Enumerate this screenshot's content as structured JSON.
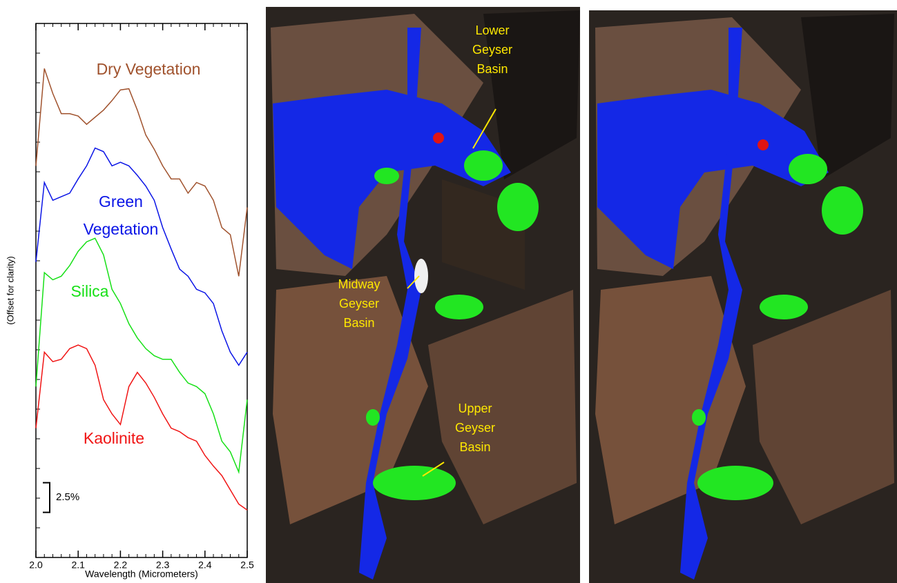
{
  "chart_data": {
    "type": "line",
    "xlabel": "Wavelength (Micrometers)",
    "ylabel": "(Offset for clarity)",
    "x": [
      2.0,
      2.02,
      2.04,
      2.06,
      2.08,
      2.1,
      2.12,
      2.14,
      2.16,
      2.18,
      2.2,
      2.22,
      2.24,
      2.26,
      2.28,
      2.3,
      2.32,
      2.34,
      2.36,
      2.38,
      2.4,
      2.42,
      2.44,
      2.46,
      2.48,
      2.5
    ],
    "xlim": [
      2.0,
      2.5
    ],
    "xticks": [
      {
        "value": 2.0,
        "label": "2.0"
      },
      2.1,
      2.2,
      2.3,
      2.4,
      2.5
    ],
    "ylim": [
      0,
      45
    ],
    "yticks": [
      2.5,
      5,
      7.5,
      10,
      12.5,
      15,
      17.5,
      20,
      22.5,
      25,
      27.5,
      30,
      32.5,
      35,
      37.5,
      40,
      42.5
    ],
    "scale_bar": {
      "value": 2.5,
      "label": "2.5%"
    },
    "series": [
      {
        "name": "Dry Vegetation",
        "color": "#a0522d",
        "values": [
          33.0,
          41.2,
          39.1,
          37.4,
          37.4,
          37.2,
          36.5,
          37.1,
          37.7,
          38.5,
          39.4,
          39.5,
          37.7,
          35.6,
          34.4,
          33.0,
          31.9,
          31.9,
          30.7,
          31.6,
          31.3,
          30.1,
          27.8,
          27.2,
          23.7,
          29.5
        ]
      },
      {
        "name": "Green Vegetation",
        "color": "#0a14e6",
        "values": [
          24.9,
          31.6,
          30.1,
          30.4,
          30.7,
          31.9,
          33.0,
          34.5,
          34.2,
          33.0,
          33.3,
          33.0,
          32.2,
          31.3,
          30.1,
          27.8,
          26.0,
          24.3,
          23.7,
          22.6,
          22.3,
          21.4,
          19.1,
          17.3,
          16.2,
          17.3
        ]
      },
      {
        "name": "Silica",
        "color": "#16e016",
        "values": [
          14.4,
          24.0,
          23.4,
          23.7,
          24.6,
          25.8,
          26.6,
          26.9,
          25.5,
          22.6,
          21.4,
          19.7,
          18.5,
          17.6,
          17.0,
          16.7,
          16.7,
          15.6,
          14.7,
          14.4,
          13.8,
          12.1,
          9.8,
          8.9,
          7.2,
          13.3
        ]
      },
      {
        "name": "Kaolinite",
        "color": "#f01414",
        "values": [
          10.9,
          17.3,
          16.5,
          16.7,
          17.6,
          17.9,
          17.6,
          16.2,
          13.3,
          12.1,
          11.2,
          14.4,
          15.6,
          14.7,
          13.5,
          12.1,
          10.9,
          10.6,
          10.1,
          9.8,
          8.6,
          7.7,
          6.9,
          5.7,
          4.5,
          4.0
        ]
      }
    ]
  },
  "map_labels": [
    "Lower Geyser Basin",
    "Midway Geyser Basin",
    "Upper Geyser Basin"
  ]
}
